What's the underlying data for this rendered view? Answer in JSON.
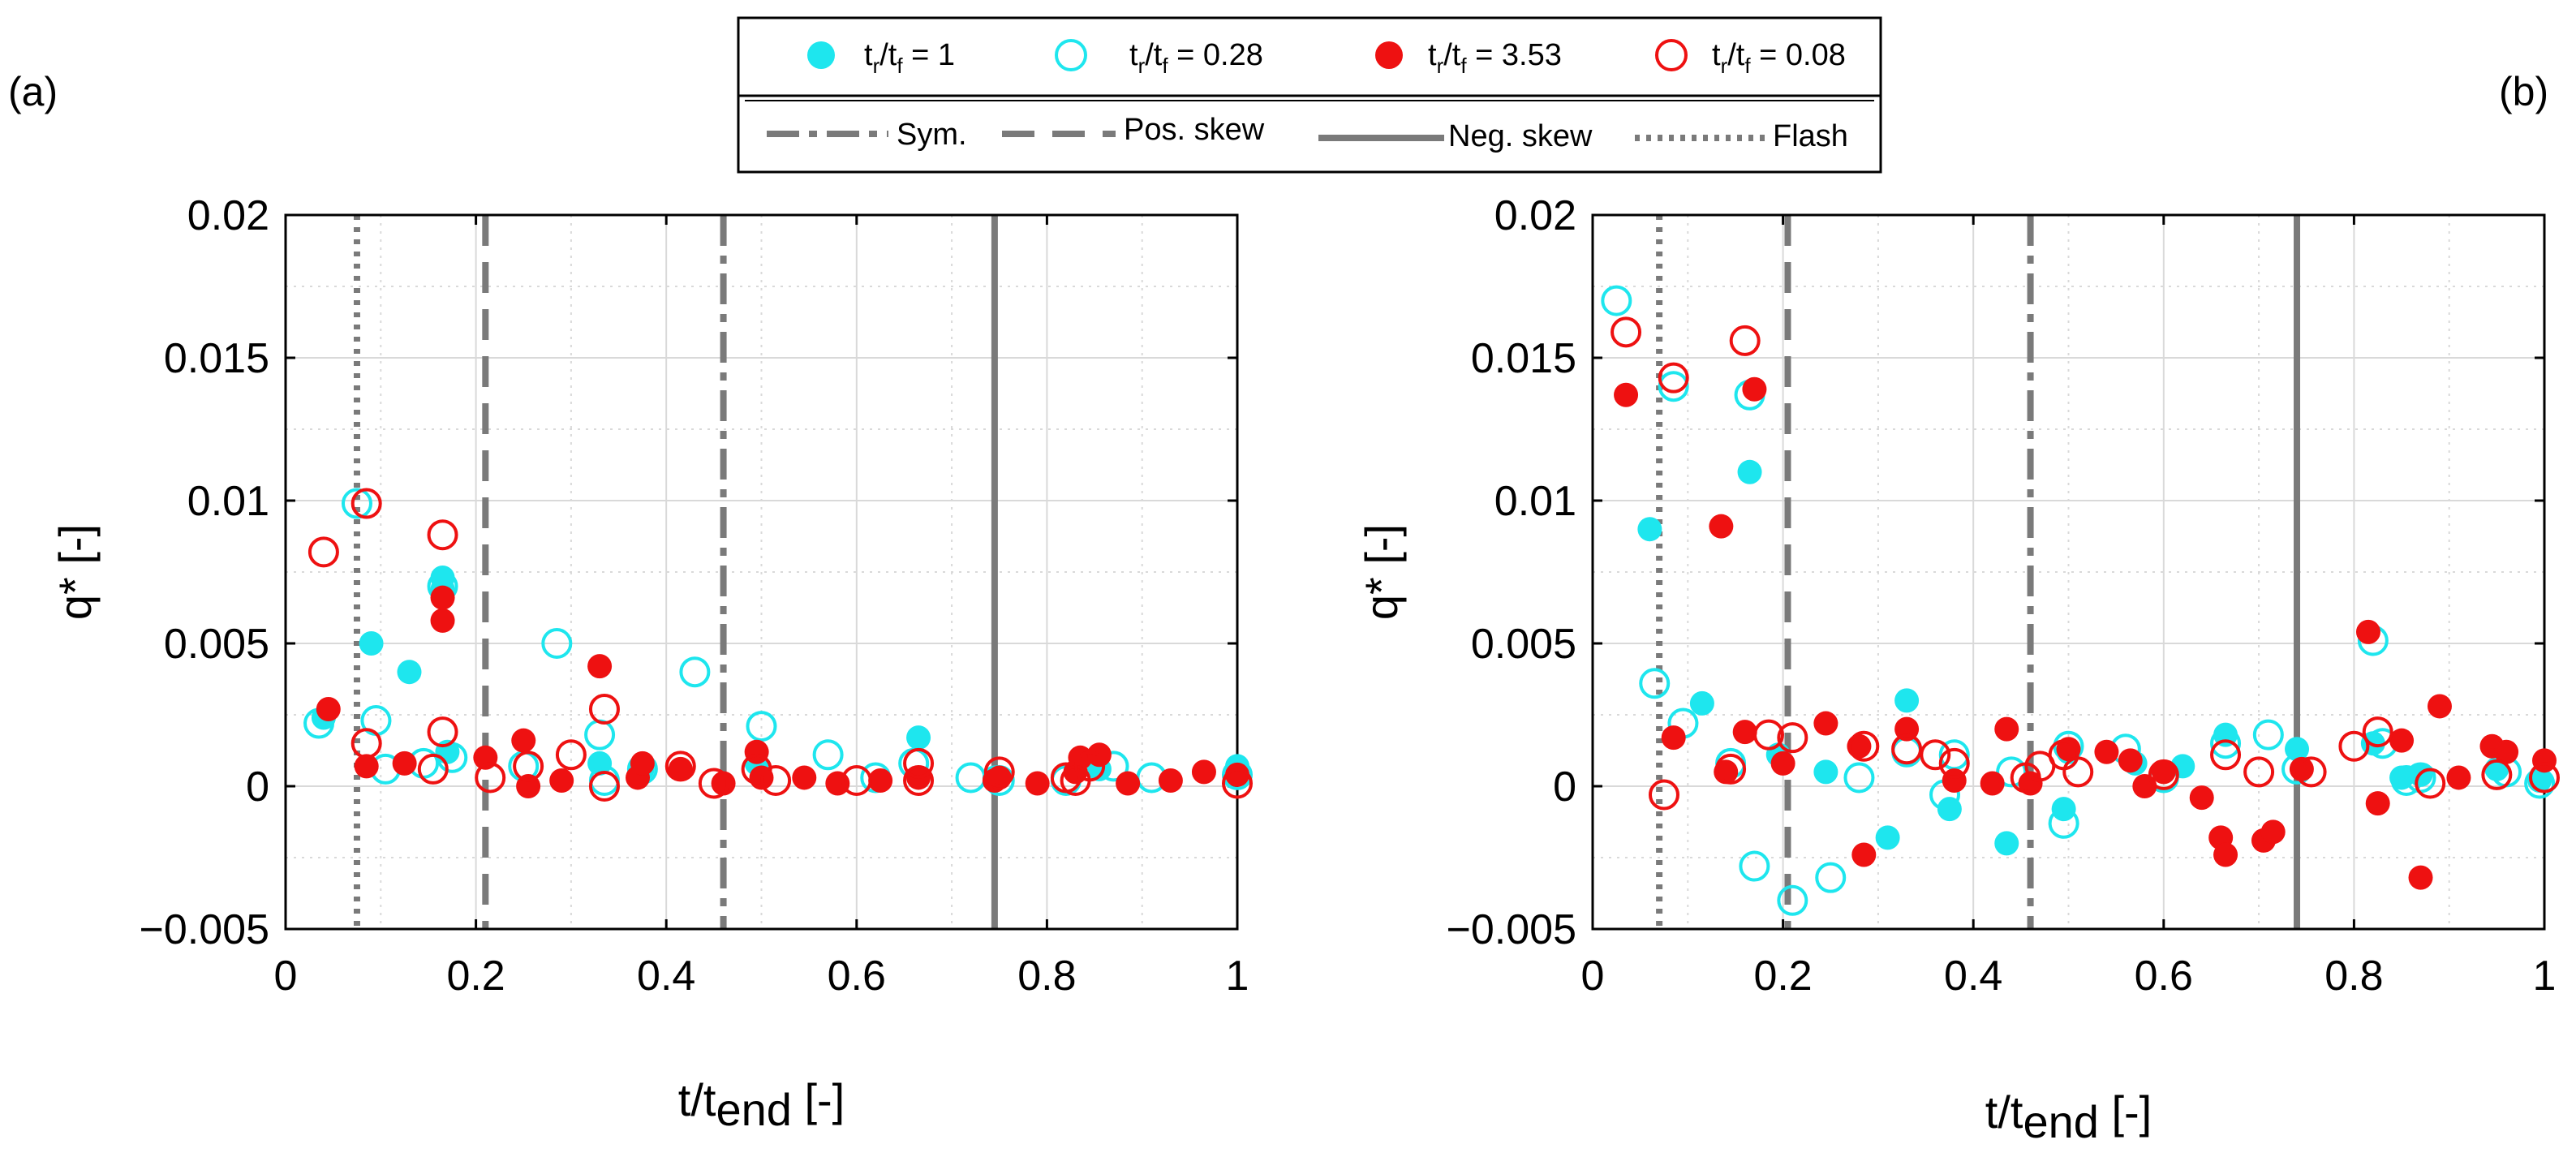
{
  "panel_labels": [
    "(a)",
    "(b)"
  ],
  "legend": {
    "markers": [
      {
        "key": "s1",
        "main": "t",
        "sub1": "r",
        "slash": "/t",
        "sub2": "f",
        "rest": " = 1"
      },
      {
        "key": "s2",
        "main": "t",
        "sub1": "r",
        "slash": "/t",
        "sub2": "f",
        "rest": " = 0.28"
      },
      {
        "key": "s3",
        "main": "t",
        "sub1": "r",
        "slash": "/t",
        "sub2": "f",
        "rest": " = 3.53"
      },
      {
        "key": "s4",
        "main": "t",
        "sub1": "r",
        "slash": "/t",
        "sub2": "f",
        "rest": " = 0.08"
      }
    ],
    "lines": [
      {
        "key": "sym",
        "label": "Sym."
      },
      {
        "key": "pos",
        "label": "Pos. skew"
      },
      {
        "key": "neg",
        "label": "Neg. skew"
      },
      {
        "key": "flash",
        "label": "Flash"
      }
    ]
  },
  "colors": {
    "cyan": "#1ee6ee",
    "red": "#ee1111",
    "vline": "#7a7a7a",
    "grid": "#d9d9d9"
  },
  "chart_data": [
    {
      "type": "scatter",
      "panel": "(a)",
      "title": "",
      "xlabel_main": "t/t",
      "xlabel_sub": "end",
      "xlabel_tail": " [-]",
      "ylabel": "q* [-]",
      "xlim": [
        0,
        1
      ],
      "ylim": [
        -0.005,
        0.02
      ],
      "xticks": [
        0,
        0.2,
        0.4,
        0.6,
        0.8,
        1
      ],
      "xtick_labels": [
        "0",
        "0.2",
        "0.4",
        "0.6",
        "0.8",
        "1"
      ],
      "yticks": [
        -0.005,
        0,
        0.005,
        0.01,
        0.015,
        0.02
      ],
      "ytick_labels": [
        "−0.005",
        "0",
        "0.005",
        "0.01",
        "0.015",
        "0.02"
      ],
      "vlines": [
        {
          "x": 0.075,
          "style": "flash"
        },
        {
          "x": 0.21,
          "style": "pos"
        },
        {
          "x": 0.46,
          "style": "sym"
        },
        {
          "x": 0.745,
          "style": "neg"
        }
      ],
      "series": [
        {
          "key": "s1",
          "name": "tr/tf = 1",
          "marker": "filled",
          "color": "cyan",
          "x": [
            0.04,
            0.09,
            0.13,
            0.165,
            0.165,
            0.17,
            0.33,
            0.375,
            0.495,
            0.665,
            0.745,
            0.855,
            1.0
          ],
          "y": [
            0.0024,
            0.005,
            0.004,
            0.0073,
            0.0069,
            0.0012,
            0.0008,
            0.0006,
            0.0008,
            0.0017,
            0.0003,
            0.0006,
            0.0007
          ]
        },
        {
          "key": "s2",
          "name": "tr/tf = 0.28",
          "marker": "open",
          "color": "cyan",
          "x": [
            0.035,
            0.075,
            0.095,
            0.105,
            0.145,
            0.165,
            0.175,
            0.25,
            0.285,
            0.33,
            0.335,
            0.375,
            0.43,
            0.5,
            0.57,
            0.62,
            0.66,
            0.72,
            0.75,
            0.82,
            0.87,
            0.91,
            1.0
          ],
          "y": [
            0.0022,
            0.0099,
            0.0023,
            0.0006,
            0.0008,
            0.007,
            0.001,
            0.0007,
            0.005,
            0.0018,
            0.0002,
            0.0006,
            0.004,
            0.0021,
            0.0011,
            0.0003,
            0.0008,
            0.0003,
            0.0002,
            0.0002,
            0.0007,
            0.0003,
            0.0004
          ]
        },
        {
          "key": "s3",
          "name": "tr/tf = 3.53",
          "marker": "filled",
          "color": "red",
          "x": [
            0.045,
            0.085,
            0.125,
            0.165,
            0.165,
            0.21,
            0.25,
            0.255,
            0.29,
            0.33,
            0.37,
            0.375,
            0.415,
            0.46,
            0.495,
            0.5,
            0.545,
            0.58,
            0.625,
            0.665,
            0.745,
            0.75,
            0.79,
            0.83,
            0.835,
            0.855,
            0.885,
            0.93,
            0.965,
            1.0
          ],
          "y": [
            0.0027,
            0.0007,
            0.0008,
            0.0058,
            0.0066,
            0.001,
            0.0016,
            0.0,
            0.0002,
            0.0042,
            0.0003,
            0.0008,
            0.0006,
            0.0001,
            0.0012,
            0.0003,
            0.0003,
            0.0001,
            0.0002,
            0.0003,
            0.0002,
            0.0003,
            0.0001,
            0.0005,
            0.001,
            0.0011,
            0.0001,
            0.0002,
            0.0005,
            0.0004
          ]
        },
        {
          "key": "s4",
          "name": "tr/tf = 0.08",
          "marker": "open",
          "color": "red",
          "x": [
            0.04,
            0.085,
            0.085,
            0.155,
            0.165,
            0.165,
            0.215,
            0.255,
            0.3,
            0.335,
            0.335,
            0.415,
            0.45,
            0.495,
            0.515,
            0.6,
            0.665,
            0.665,
            0.75,
            0.82,
            0.83,
            0.845,
            1.0
          ],
          "y": [
            0.0082,
            0.0099,
            0.0015,
            0.0006,
            0.0088,
            0.0019,
            0.0003,
            0.0007,
            0.0011,
            0.0027,
            0.0,
            0.0007,
            0.0001,
            0.0006,
            0.0002,
            0.0002,
            0.0002,
            0.0008,
            0.0005,
            0.0003,
            0.0002,
            0.0007,
            0.0001
          ]
        }
      ]
    },
    {
      "type": "scatter",
      "panel": "(b)",
      "title": "",
      "xlabel_main": "t/t",
      "xlabel_sub": "end",
      "xlabel_tail": " [-]",
      "ylabel": "q* [-]",
      "xlim": [
        0,
        1
      ],
      "ylim": [
        -0.005,
        0.02
      ],
      "xticks": [
        0,
        0.2,
        0.4,
        0.6,
        0.8,
        1
      ],
      "xtick_labels": [
        "0",
        "0.2",
        "0.4",
        "0.6",
        "0.8",
        "1"
      ],
      "yticks": [
        -0.005,
        0,
        0.005,
        0.01,
        0.015,
        0.02
      ],
      "ytick_labels": [
        "−0.005",
        "0",
        "0.005",
        "0.01",
        "0.015",
        "0.02"
      ],
      "vlines": [
        {
          "x": 0.07,
          "style": "flash"
        },
        {
          "x": 0.205,
          "style": "pos"
        },
        {
          "x": 0.46,
          "style": "sym"
        },
        {
          "x": 0.74,
          "style": "neg"
        }
      ],
      "series": [
        {
          "key": "s1",
          "name": "tr/tf = 1",
          "marker": "filled",
          "color": "cyan",
          "x": [
            0.06,
            0.115,
            0.165,
            0.195,
            0.245,
            0.31,
            0.33,
            0.375,
            0.435,
            0.495,
            0.5,
            0.57,
            0.62,
            0.665,
            0.74,
            0.82,
            0.85,
            0.87,
            0.95,
            0.995
          ],
          "y": [
            0.009,
            0.0029,
            0.011,
            0.0011,
            0.0005,
            -0.0018,
            0.003,
            -0.0008,
            -0.002,
            -0.0008,
            0.0012,
            0.0008,
            0.0007,
            0.0018,
            0.0013,
            0.0015,
            0.0003,
            0.0004,
            0.0006,
            0.0002
          ]
        },
        {
          "key": "s2",
          "name": "tr/tf = 0.28",
          "marker": "open",
          "color": "cyan",
          "x": [
            0.025,
            0.065,
            0.085,
            0.095,
            0.145,
            0.165,
            0.17,
            0.21,
            0.25,
            0.28,
            0.33,
            0.37,
            0.38,
            0.44,
            0.495,
            0.5,
            0.56,
            0.6,
            0.665,
            0.71,
            0.74,
            0.82,
            0.83,
            0.855,
            0.87,
            0.96,
            0.995
          ],
          "y": [
            0.017,
            0.0036,
            0.014,
            0.0022,
            0.0008,
            0.0137,
            -0.0028,
            -0.004,
            -0.0032,
            0.0003,
            0.0012,
            -0.0003,
            0.0011,
            0.0005,
            -0.0013,
            0.0014,
            0.0013,
            0.0003,
            0.0015,
            0.0018,
            0.0006,
            0.0051,
            0.0015,
            0.0002,
            0.0003,
            0.0005,
            0.0001
          ]
        },
        {
          "key": "s3",
          "name": "tr/tf = 3.53",
          "marker": "filled",
          "color": "red",
          "x": [
            0.035,
            0.085,
            0.135,
            0.14,
            0.16,
            0.17,
            0.2,
            0.245,
            0.28,
            0.285,
            0.33,
            0.38,
            0.42,
            0.435,
            0.46,
            0.5,
            0.54,
            0.565,
            0.58,
            0.6,
            0.64,
            0.66,
            0.665,
            0.705,
            0.715,
            0.745,
            0.815,
            0.825,
            0.85,
            0.87,
            0.89,
            0.91,
            0.945,
            0.96,
            1.0
          ],
          "y": [
            0.0137,
            0.0017,
            0.0091,
            0.0005,
            0.0019,
            0.0139,
            0.0008,
            0.0022,
            0.0014,
            -0.0024,
            0.002,
            0.0002,
            0.0001,
            0.002,
            0.0001,
            0.0013,
            0.0012,
            0.0009,
            0.0,
            0.0005,
            -0.0004,
            -0.0018,
            -0.0024,
            -0.0019,
            -0.0016,
            0.0006,
            0.0054,
            -0.0006,
            0.0016,
            -0.0032,
            0.0028,
            0.0003,
            0.0014,
            0.0012,
            0.0009
          ]
        },
        {
          "key": "s4",
          "name": "tr/tf = 0.08",
          "marker": "open",
          "color": "red",
          "x": [
            0.035,
            0.085,
            0.075,
            0.16,
            0.145,
            0.185,
            0.21,
            0.285,
            0.33,
            0.36,
            0.38,
            0.455,
            0.47,
            0.495,
            0.51,
            0.6,
            0.665,
            0.7,
            0.755,
            0.8,
            0.825,
            0.88,
            0.95,
            1.0
          ],
          "y": [
            0.0159,
            0.0143,
            -0.0003,
            0.0156,
            0.0006,
            0.0018,
            0.0017,
            0.0014,
            0.0013,
            0.0011,
            0.0008,
            0.0003,
            0.0007,
            0.0011,
            0.0005,
            0.0004,
            0.0011,
            0.0005,
            0.0005,
            0.0014,
            0.0019,
            0.0001,
            0.0004,
            0.0003
          ]
        }
      ]
    }
  ]
}
